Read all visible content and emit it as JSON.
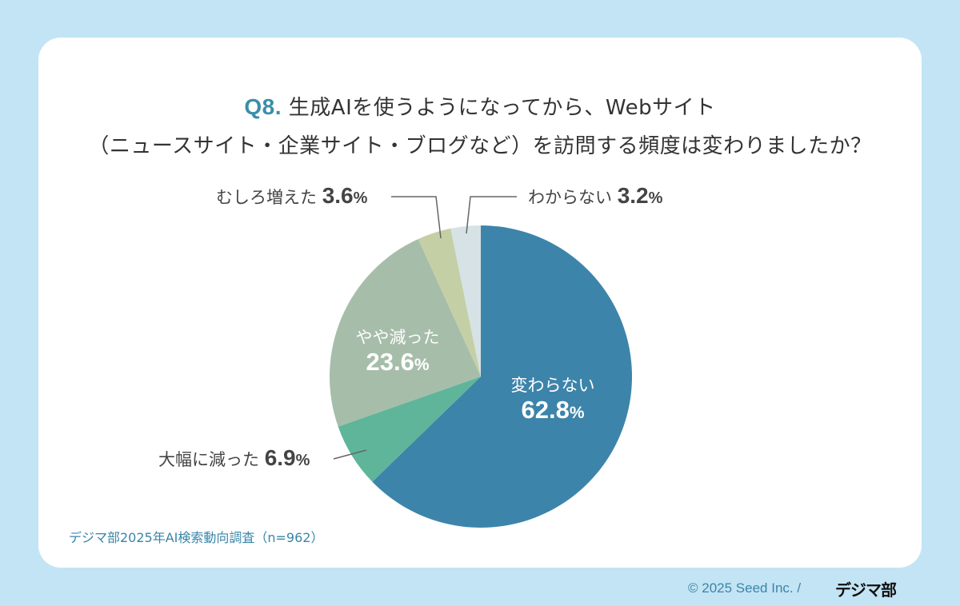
{
  "title": {
    "qnum": "Q8.",
    "line1": "生成AIを使うようになってから、Webサイト",
    "line2": "（ニュースサイト・企業サイト・ブログなど）を訪問する頻度は変わりましたか？"
  },
  "labels": {
    "unchanged": {
      "name": "変わらない",
      "value": "62.8",
      "unit": "%"
    },
    "greatly_decreased": {
      "name": "大幅に減った",
      "value": "6.9",
      "unit": "%"
    },
    "slightly_decreased": {
      "name": "やや減った",
      "value": "23.6",
      "unit": "%"
    },
    "increased": {
      "name": "むしろ増えた",
      "value": "3.6",
      "unit": "%"
    },
    "unknown": {
      "name": "わからない",
      "value": "3.2",
      "unit": "%"
    }
  },
  "source": "デジマ部2025年AI検索動向調査（n=962）",
  "footer": {
    "copyright": "© 2025 Seed Inc. /",
    "brand": "デジマ部"
  },
  "colors": {
    "background": "#c3e4f4",
    "accent": "#3a8ea8",
    "unchanged": "#3d84aa",
    "greatly_decreased": "#5fb59a",
    "slightly_decreased": "#a6bdaa",
    "increased": "#c5cfa6",
    "unknown": "#d6e2e5"
  },
  "chart_data": {
    "type": "pie",
    "title": "Q8. 生成AIを使うようになってから、Webサイト（ニュースサイト・企業サイト・ブログなど）を訪問する頻度は変わりましたか？",
    "categories": [
      "変わらない",
      "大幅に減った",
      "やや減った",
      "むしろ増えた",
      "わからない"
    ],
    "values": [
      62.8,
      6.9,
      23.6,
      3.6,
      3.2
    ],
    "unit": "%",
    "start_angle": "12 o'clock",
    "direction": "clockwise",
    "colors": [
      "#3d84aa",
      "#5fb59a",
      "#a6bdaa",
      "#c5cfa6",
      "#d6e2e5"
    ],
    "note": "デジマ部2025年AI検索動向調査（n=962）"
  }
}
